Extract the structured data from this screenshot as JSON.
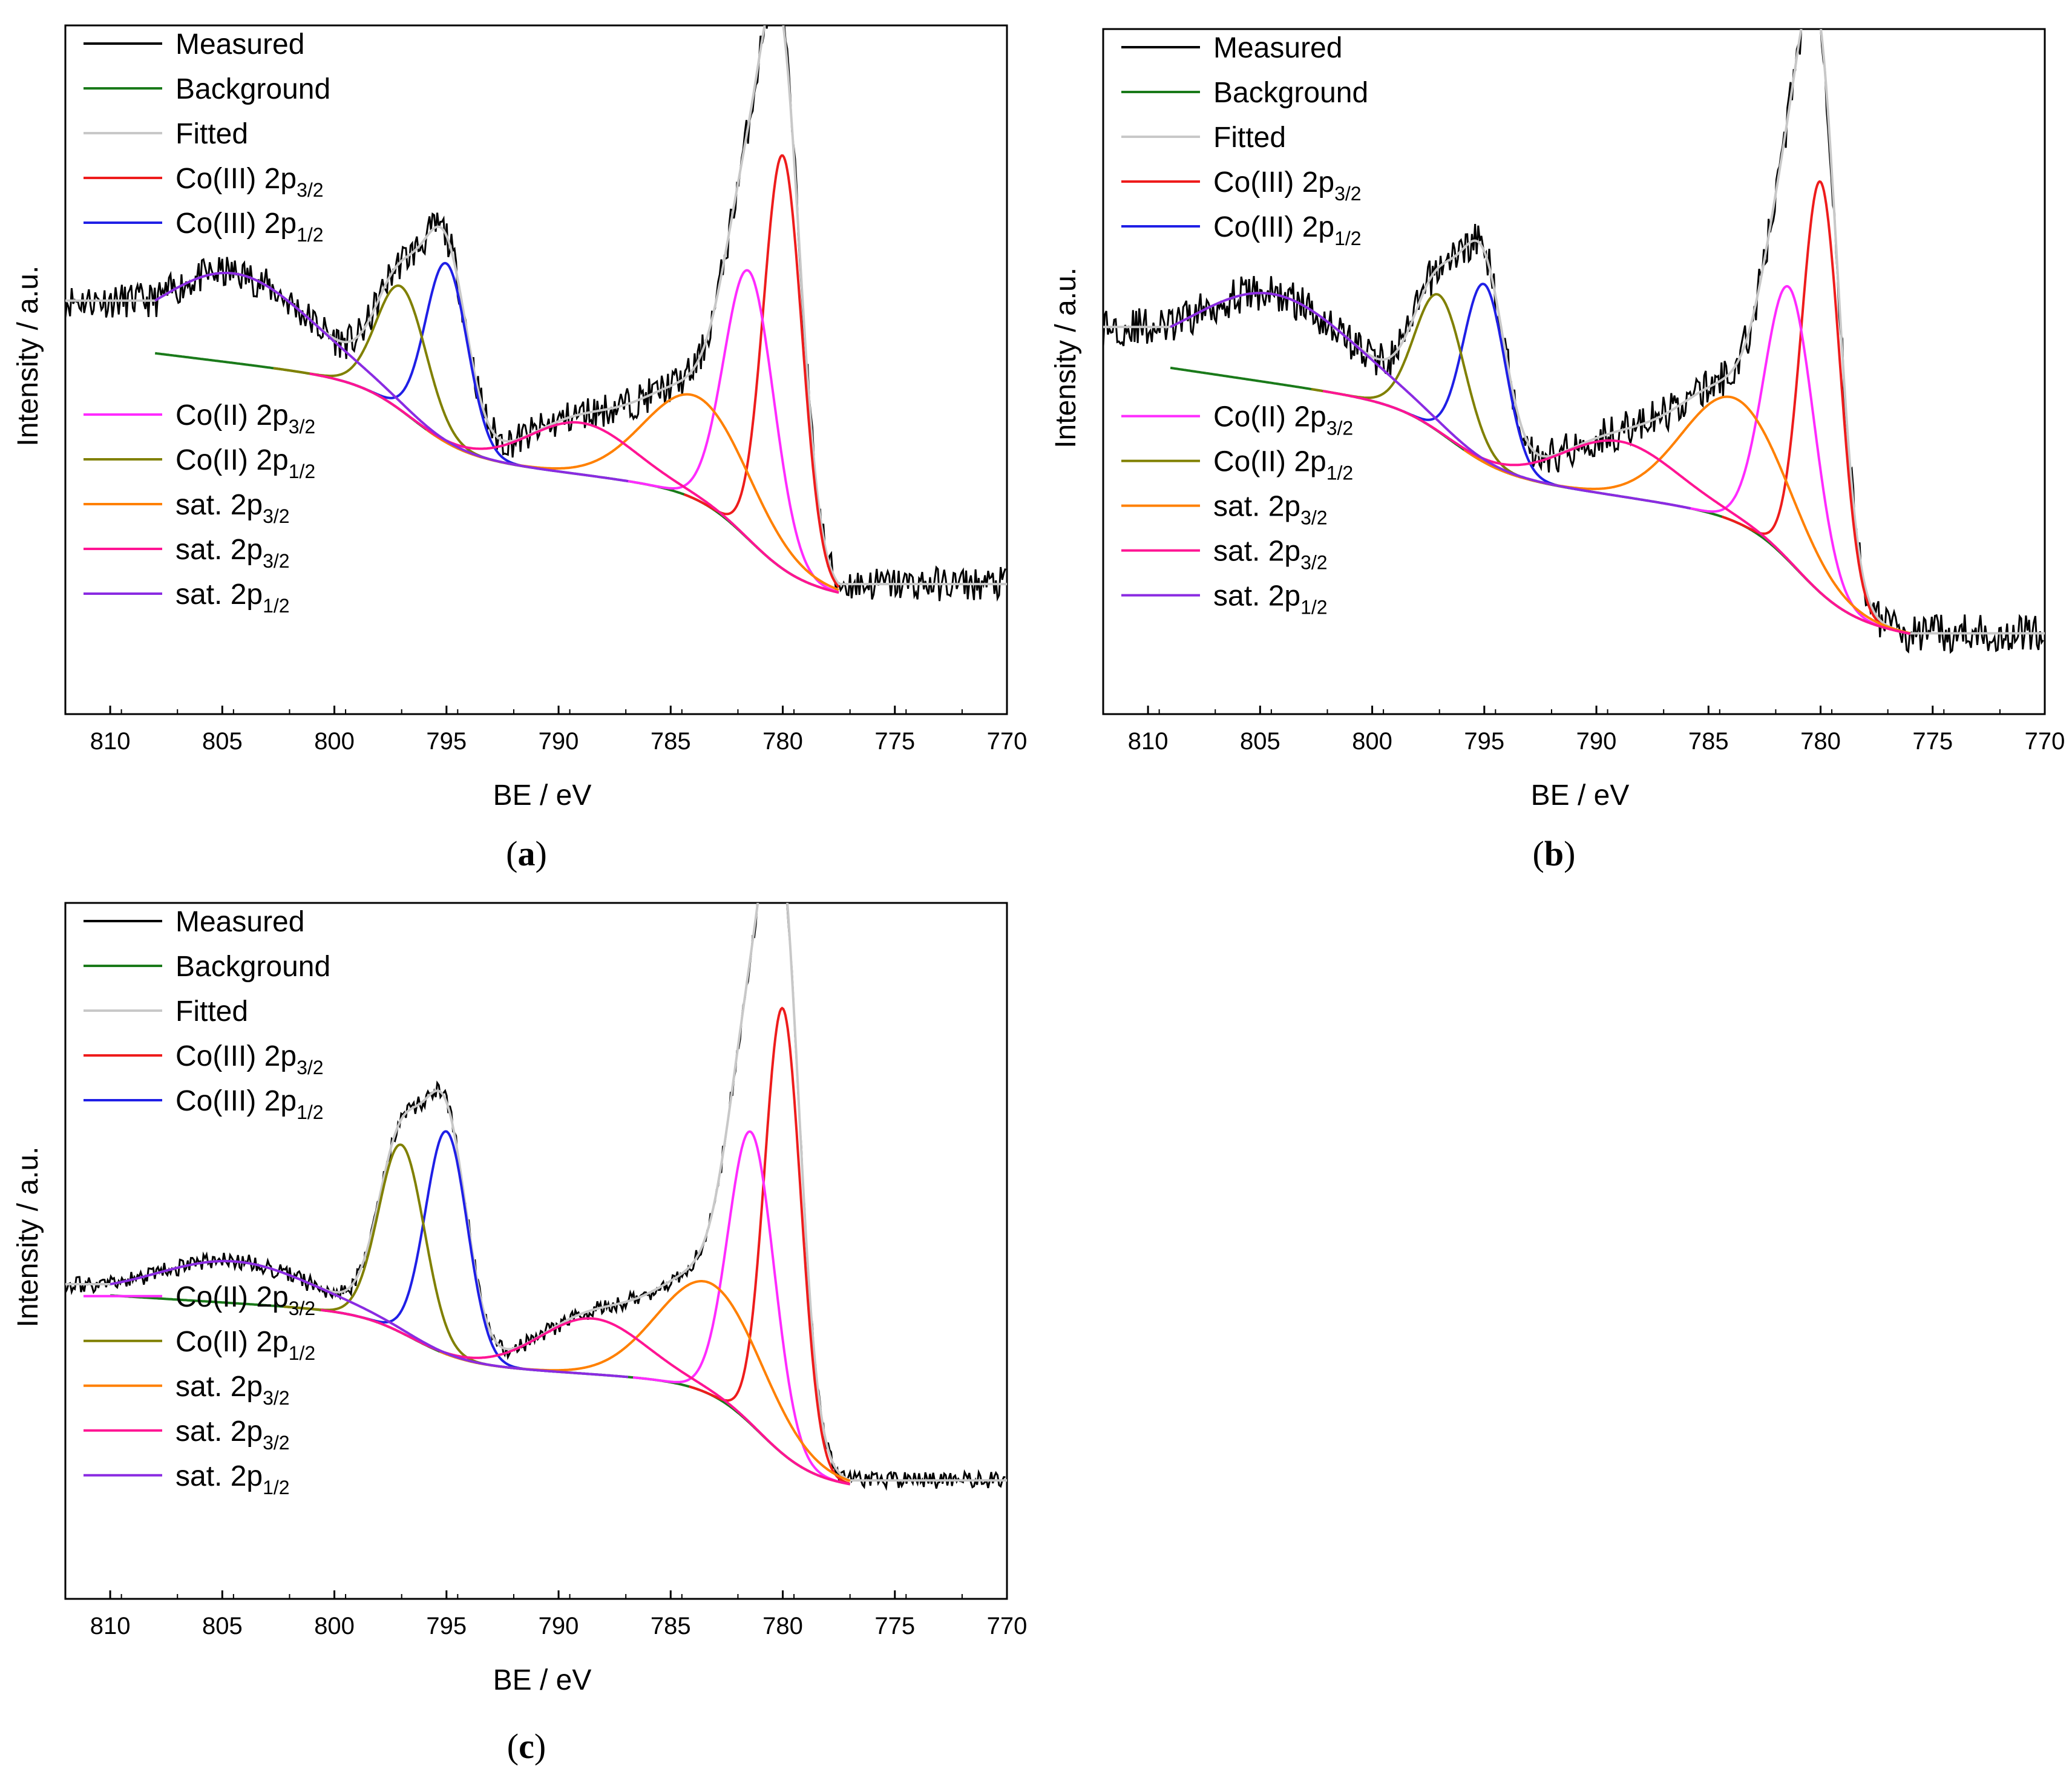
{
  "figure": {
    "legend_labels": [
      {
        "id": "measured",
        "text": "Measured",
        "color": "#000000"
      },
      {
        "id": "background",
        "text": "Background",
        "color": "#1a7a1a"
      },
      {
        "id": "fitted",
        "text": "Fitted",
        "color": "#c8c8c8"
      },
      {
        "id": "co3_2p32",
        "text": "Co(III) 2p",
        "sub": "3/2",
        "color": "#ee1c1c"
      },
      {
        "id": "co3_2p12",
        "text": "Co(III) 2p",
        "sub": "1/2",
        "color": "#1f1fe6"
      },
      {
        "id": "co2_2p32",
        "text": "Co(II) 2p",
        "sub": "3/2",
        "color": "#ff2bff"
      },
      {
        "id": "co2_2p12",
        "text": "Co(II) 2p",
        "sub": "1/2",
        "color": "#808000"
      },
      {
        "id": "sat_a",
        "text": "sat. 2p",
        "sub": "3/2",
        "color": "#ff8000"
      },
      {
        "id": "sat_b",
        "text": "sat. 2p",
        "sub": "3/2",
        "color": "#ff1493"
      },
      {
        "id": "sat_c",
        "text": "sat. 2p",
        "sub": "1/2",
        "color": "#8a2be2"
      }
    ]
  },
  "chart_data": [
    {
      "panel": "(a)",
      "type": "line",
      "xlabel": "BE / eV",
      "ylabel": "Intensity / a.u.",
      "xlim": [
        812,
        770
      ],
      "x_ticks": [
        810,
        805,
        800,
        795,
        790,
        785,
        780,
        775,
        770
      ],
      "ylim": [
        0,
        1.0
      ],
      "x_range_measured": [
        812,
        770
      ],
      "x_range_fit": [
        808,
        777.5
      ],
      "background": {
        "start": 0.54,
        "mid": 0.34,
        "end": 0.17,
        "step1_center": 796.5,
        "step1_height": 0.1,
        "step2_center": 781.5,
        "step2_height": 0.13
      },
      "components": [
        {
          "id": "co3_2p32",
          "center": 780.0,
          "height": 0.6,
          "fwhm": 2.0
        },
        {
          "id": "co3_2p12",
          "center": 795.0,
          "height": 0.26,
          "fwhm": 2.2
        },
        {
          "id": "co2_2p32",
          "center": 781.5,
          "height": 0.39,
          "fwhm": 2.6
        },
        {
          "id": "co2_2p12",
          "center": 797.0,
          "height": 0.18,
          "fwhm": 2.6
        },
        {
          "id": "sat_a",
          "center": 783.8,
          "height": 0.15,
          "fwhm": 5.5
        },
        {
          "id": "sat_b",
          "center": 789.0,
          "height": 0.075,
          "fwhm": 5.5
        },
        {
          "id": "sat_c",
          "center": 804.5,
          "height": 0.13,
          "fwhm": 8.0
        }
      ],
      "noise": 0.025
    },
    {
      "panel": "(b)",
      "type": "line",
      "xlabel": "BE / eV",
      "ylabel": "Intensity / a.u.",
      "xlim": [
        812,
        770
      ],
      "x_ticks": [
        810,
        805,
        800,
        795,
        790,
        785,
        780,
        775,
        770
      ],
      "ylim": [
        0,
        1.0
      ],
      "x_range_measured": [
        812,
        770
      ],
      "x_range_fit": [
        809,
        776
      ],
      "background": {
        "start": 0.52,
        "mid": 0.32,
        "end": 0.12,
        "step1_center": 796.5,
        "step1_height": 0.09,
        "step2_center": 781.0,
        "step2_height": 0.14
      },
      "components": [
        {
          "id": "co3_2p32",
          "center": 780.0,
          "height": 0.6,
          "fwhm": 2.0
        },
        {
          "id": "co3_2p12",
          "center": 795.0,
          "height": 0.26,
          "fwhm": 2.2
        },
        {
          "id": "co2_2p32",
          "center": 781.4,
          "height": 0.4,
          "fwhm": 2.6
        },
        {
          "id": "co2_2p12",
          "center": 797.0,
          "height": 0.2,
          "fwhm": 2.6
        },
        {
          "id": "sat_a",
          "center": 783.8,
          "height": 0.18,
          "fwhm": 5.5
        },
        {
          "id": "sat_b",
          "center": 789.0,
          "height": 0.08,
          "fwhm": 6.0
        },
        {
          "id": "sat_c",
          "center": 804.5,
          "height": 0.13,
          "fwhm": 8.5
        }
      ],
      "noise": 0.028
    },
    {
      "panel": "(c)",
      "type": "line",
      "xlabel": "BE / eV",
      "ylabel": "Intensity / a.u.",
      "xlim": [
        812,
        770
      ],
      "x_ticks": [
        810,
        805,
        800,
        795,
        790,
        785,
        780,
        775,
        770
      ],
      "ylim": [
        0,
        1.0
      ],
      "x_range_measured": [
        812,
        770
      ],
      "x_range_fit": [
        810,
        777
      ],
      "background": {
        "start": 0.44,
        "mid": 0.33,
        "end": 0.16,
        "step1_center": 796.5,
        "step1_height": 0.07,
        "step2_center": 781.0,
        "step2_height": 0.14
      },
      "components": [
        {
          "id": "co3_2p32",
          "center": 780.0,
          "height": 0.64,
          "fwhm": 1.9
        },
        {
          "id": "co3_2p12",
          "center": 795.0,
          "height": 0.32,
          "fwhm": 2.2
        },
        {
          "id": "co2_2p32",
          "center": 781.4,
          "height": 0.42,
          "fwhm": 2.4
        },
        {
          "id": "co2_2p12",
          "center": 797.0,
          "height": 0.27,
          "fwhm": 2.4
        },
        {
          "id": "sat_a",
          "center": 783.2,
          "height": 0.16,
          "fwhm": 5.5
        },
        {
          "id": "sat_b",
          "center": 788.5,
          "height": 0.08,
          "fwhm": 5.5
        },
        {
          "id": "sat_c",
          "center": 804.5,
          "height": 0.06,
          "fwhm": 8.0
        }
      ],
      "noise": 0.012
    }
  ]
}
